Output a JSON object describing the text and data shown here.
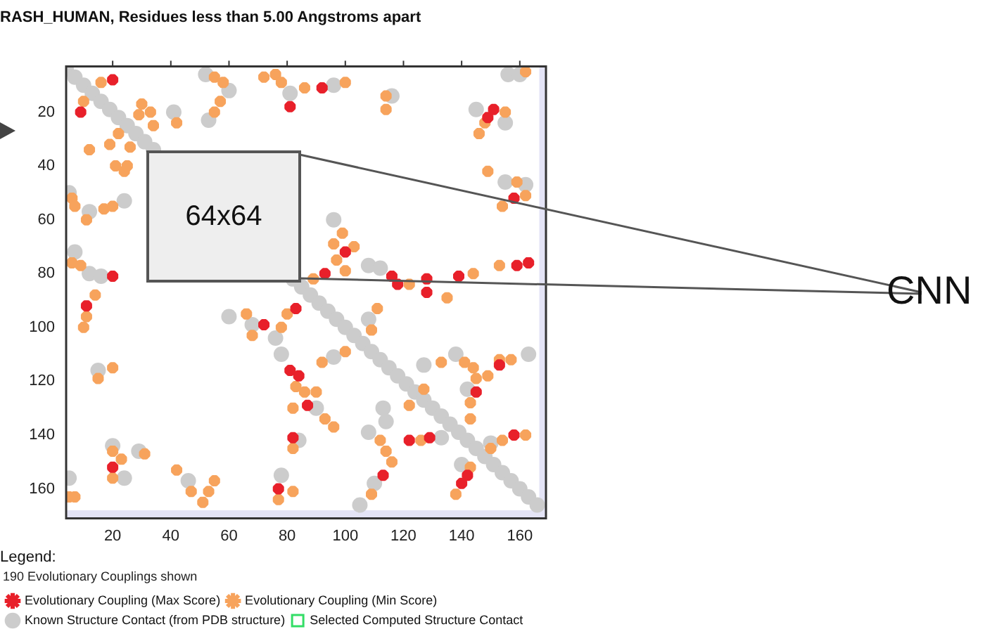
{
  "chart_data": {
    "type": "scatter",
    "title": "RASH_HUMAN, Residues less than 5.00 Angstroms apart",
    "legend_title": "Legend:",
    "annotations": [
      "190 Evolutionary Couplings shown",
      "64x64",
      "CNN"
    ],
    "xlim": [
      4,
      169
    ],
    "xticks": [
      20,
      40,
      60,
      80,
      100,
      120,
      140,
      160
    ],
    "ylim": [
      171,
      3
    ],
    "yticks": [
      20,
      40,
      60,
      80,
      100,
      120,
      140,
      160
    ],
    "legend": "bottom",
    "bands": [
      {
        "axis": "x",
        "from": 166.7,
        "to": 169,
        "color": "#e4e4f6"
      },
      {
        "axis": "y",
        "from": 168,
        "to": 171,
        "color": "#e4e4f6"
      }
    ],
    "series": [
      {
        "name": "Evolutionary Coupling (Max Score)",
        "color": "#e8202a",
        "marker": "cross",
        "x": [
          20,
          9,
          81,
          92,
          149,
          151,
          158,
          20,
          100,
          116,
          118,
          128,
          128,
          139,
          159,
          163,
          93,
          11,
          72,
          83,
          81,
          84,
          87,
          82,
          122,
          129,
          113,
          153,
          145,
          158,
          142,
          140,
          20,
          77
        ],
        "values": [
          8,
          20,
          18,
          11,
          22,
          19,
          52,
          81,
          72,
          81,
          84,
          82,
          87,
          81,
          77,
          76,
          80,
          92,
          99,
          93,
          116,
          118,
          129,
          141,
          142,
          141,
          155,
          114,
          124,
          140,
          155,
          158,
          152,
          160
        ]
      },
      {
        "name": "Known Structure Contact (from PDB structure)",
        "color": "#cccccc",
        "marker": "circle",
        "x": [
          4,
          7,
          10,
          13,
          16,
          19,
          22,
          25,
          28,
          31,
          34,
          82,
          85,
          88,
          91,
          94,
          97,
          100,
          103,
          106,
          109,
          112,
          115,
          118,
          121,
          124,
          127,
          130,
          133,
          136,
          139,
          142,
          145,
          148,
          151,
          154,
          157,
          160,
          163,
          166,
          41,
          52,
          60,
          53,
          81,
          96,
          116,
          145,
          155,
          156,
          160,
          155,
          162,
          5,
          12,
          24,
          7,
          12,
          16,
          96,
          108,
          112,
          15,
          60,
          68,
          76,
          78,
          90,
          84,
          96,
          108,
          113,
          114,
          108,
          133,
          110,
          105,
          138,
          163,
          127,
          142,
          150,
          140,
          5,
          20,
          24,
          29,
          46,
          78
        ],
        "values": [
          4,
          7,
          10,
          13,
          16,
          19,
          22,
          25,
          28,
          31,
          34,
          82,
          85,
          88,
          91,
          94,
          97,
          100,
          103,
          106,
          109,
          112,
          115,
          118,
          121,
          124,
          127,
          130,
          133,
          136,
          139,
          142,
          145,
          148,
          151,
          154,
          157,
          160,
          163,
          166,
          20,
          6,
          12,
          23,
          13,
          10,
          14,
          19,
          24,
          6,
          6,
          46,
          47,
          50,
          57,
          53,
          72,
          80,
          81,
          60,
          77,
          78,
          116,
          96,
          99,
          104,
          110,
          130,
          142,
          111,
          97,
          130,
          135,
          139,
          141,
          158,
          166,
          110,
          110,
          114,
          123,
          143,
          151,
          156,
          144,
          156,
          146,
          157,
          155
        ]
      },
      {
        "name": "Evolutionary Coupling (Min Score)",
        "color": "#f7a35c",
        "marker": "cross",
        "x": [
          16,
          10,
          30,
          29,
          33,
          34,
          42,
          22,
          19,
          12,
          26,
          21,
          24,
          25,
          55,
          58,
          57,
          55,
          72,
          76,
          78,
          86,
          100,
          114,
          114,
          155,
          146,
          148,
          162,
          149,
          159,
          154,
          162,
          6,
          7,
          11,
          17,
          20,
          6,
          9,
          14,
          99,
          96,
          103,
          97,
          100,
          122,
          135,
          144,
          153,
          89,
          11,
          10,
          15,
          20,
          66,
          68,
          78,
          80,
          83,
          86,
          90,
          82,
          93,
          96,
          82,
          92,
          100,
          109,
          111,
          122,
          127,
          112,
          114,
          116,
          126,
          109,
          141,
          144,
          145,
          149,
          153,
          157,
          133,
          143,
          143,
          154,
          162,
          150,
          143,
          138,
          5,
          7,
          20,
          23,
          20,
          31,
          42,
          47,
          51,
          53,
          55,
          77,
          82
        ],
        "values": [
          9,
          16,
          17,
          21,
          20,
          25,
          24,
          28,
          32,
          34,
          33,
          40,
          42,
          40,
          7,
          9,
          16,
          20,
          7,
          6,
          9,
          11,
          9,
          14,
          19,
          20,
          28,
          24,
          5,
          42,
          46,
          55,
          51,
          52,
          55,
          60,
          56,
          55,
          76,
          77,
          88,
          65,
          69,
          70,
          75,
          79,
          84,
          89,
          80,
          77,
          82,
          96,
          100,
          119,
          115,
          95,
          103,
          100,
          95,
          122,
          124,
          124,
          130,
          134,
          137,
          145,
          113,
          109,
          101,
          93,
          129,
          123,
          142,
          146,
          150,
          142,
          162,
          113,
          115,
          119,
          118,
          112,
          112,
          113,
          128,
          134,
          142,
          140,
          145,
          152,
          162,
          163,
          163,
          146,
          149,
          156,
          147,
          153,
          161,
          165,
          161,
          157,
          164,
          161
        ]
      },
      {
        "name": "Selected Computed Structure Contact",
        "color": "#33dd66",
        "marker": "square"
      }
    ]
  }
}
